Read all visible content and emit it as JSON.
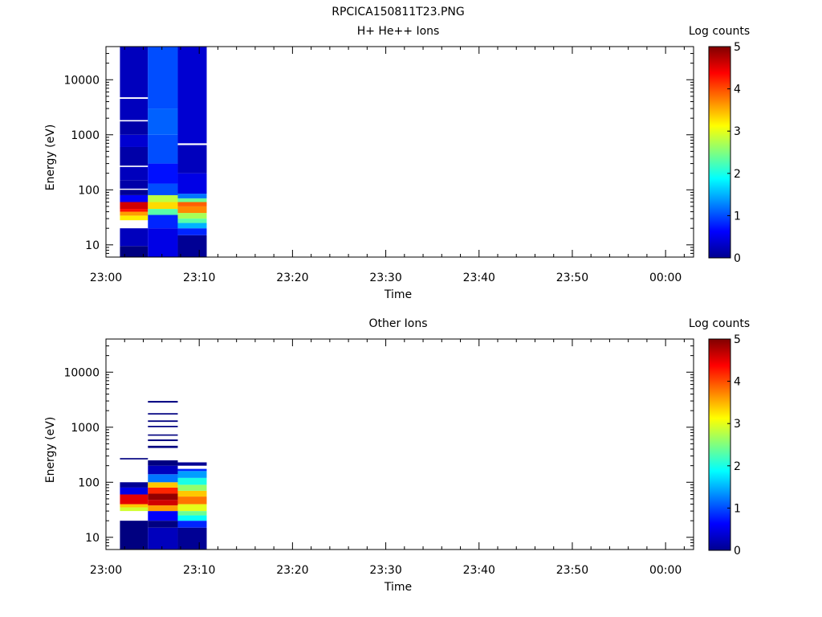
{
  "figure": {
    "title": "RPCICA150811T23.PNG"
  },
  "colors": {
    "background": "#ffffff",
    "axes": "#000000",
    "colormap": "jet"
  },
  "chart_data": [
    {
      "type": "heatmap",
      "title": "H+ He++ Ions",
      "xlabel": "Time",
      "ylabel": "Energy (eV)",
      "yscale": "log",
      "xlim": [
        "23:00",
        "00:03"
      ],
      "ylim": [
        6,
        40000
      ],
      "x_ticks": [
        "23:00",
        "23:10",
        "23:20",
        "23:30",
        "23:40",
        "23:50",
        "00:00"
      ],
      "y_ticks": [
        "10",
        "100",
        "1000",
        "10000"
      ],
      "colorbar": {
        "label": "Log counts",
        "range": [
          0,
          5
        ],
        "ticks": [
          "0",
          "1",
          "2",
          "3",
          "4",
          "5"
        ]
      },
      "time_bins": [
        {
          "start": "23:01.5",
          "end": "23:04.5"
        },
        {
          "start": "23:04.5",
          "end": "23:07.7"
        },
        {
          "start": "23:07.7",
          "end": "23:10.8"
        }
      ],
      "cells": [
        [
          {
            "e": [
              6,
              9.5
            ],
            "v": 0.0
          },
          {
            "e": [
              9.5,
              20
            ],
            "v": 0.3
          },
          {
            "e": [
              20,
              28
            ],
            "v": null
          },
          {
            "e": [
              28,
              34
            ],
            "v": 3.2
          },
          {
            "e": [
              34,
              40
            ],
            "v": 3.6
          },
          {
            "e": [
              40,
              45
            ],
            "v": 4.3
          },
          {
            "e": [
              45,
              60
            ],
            "v": 4.6
          },
          {
            "e": [
              60,
              80
            ],
            "v": 0.6
          },
          {
            "e": [
              80,
              100
            ],
            "v": 0.1
          },
          {
            "e": [
              100,
              105
            ],
            "v": null
          },
          {
            "e": [
              105,
              150
            ],
            "v": 0.2
          },
          {
            "e": [
              150,
              260
            ],
            "v": 0.3
          },
          {
            "e": [
              260,
              275
            ],
            "v": null
          },
          {
            "e": [
              275,
              600
            ],
            "v": 0.2
          },
          {
            "e": [
              600,
              1000
            ],
            "v": 0.4
          },
          {
            "e": [
              1000,
              1750
            ],
            "v": 0.2
          },
          {
            "e": [
              1750,
              1850
            ],
            "v": null
          },
          {
            "e": [
              1850,
              4500
            ],
            "v": 0.3
          },
          {
            "e": [
              4500,
              4800
            ],
            "v": null
          },
          {
            "e": [
              4800,
              40000
            ],
            "v": 0.3
          }
        ],
        [
          {
            "e": [
              6,
              20
            ],
            "v": 0.5
          },
          {
            "e": [
              20,
              35
            ],
            "v": 0.8
          },
          {
            "e": [
              35,
              45
            ],
            "v": 2.3
          },
          {
            "e": [
              45,
              60
            ],
            "v": 3.3
          },
          {
            "e": [
              60,
              80
            ],
            "v": 2.8
          },
          {
            "e": [
              80,
              130
            ],
            "v": 1.0
          },
          {
            "e": [
              130,
              300
            ],
            "v": 0.7
          },
          {
            "e": [
              300,
              1000
            ],
            "v": 1.0
          },
          {
            "e": [
              1000,
              3000
            ],
            "v": 1.1
          },
          {
            "e": [
              3000,
              40000
            ],
            "v": 1.0
          }
        ],
        [
          {
            "e": [
              6,
              15
            ],
            "v": 0.1
          },
          {
            "e": [
              15,
              20
            ],
            "v": 0.8
          },
          {
            "e": [
              20,
              25
            ],
            "v": 1.5
          },
          {
            "e": [
              25,
              30
            ],
            "v": 2.3
          },
          {
            "e": [
              30,
              38
            ],
            "v": 2.7
          },
          {
            "e": [
              38,
              50
            ],
            "v": 3.7
          },
          {
            "e": [
              50,
              60
            ],
            "v": 3.9
          },
          {
            "e": [
              60,
              70
            ],
            "v": 2.4
          },
          {
            "e": [
              70,
              85
            ],
            "v": 1.2
          },
          {
            "e": [
              85,
              200
            ],
            "v": 0.5
          },
          {
            "e": [
              200,
              650
            ],
            "v": 0.3
          },
          {
            "e": [
              650,
              700
            ],
            "v": null
          },
          {
            "e": [
              700,
              40000
            ],
            "v": 0.4
          }
        ]
      ]
    },
    {
      "type": "heatmap",
      "title": "Other Ions",
      "xlabel": "Time",
      "ylabel": "Energy (eV)",
      "yscale": "log",
      "xlim": [
        "23:00",
        "00:03"
      ],
      "ylim": [
        6,
        40000
      ],
      "x_ticks": [
        "23:00",
        "23:10",
        "23:20",
        "23:30",
        "23:40",
        "23:50",
        "00:00"
      ],
      "y_ticks": [
        "10",
        "100",
        "1000",
        "10000"
      ],
      "colorbar": {
        "label": "Log counts",
        "range": [
          0,
          5
        ],
        "ticks": [
          "0",
          "1",
          "2",
          "3",
          "4",
          "5"
        ]
      },
      "time_bins": [
        {
          "start": "23:01.5",
          "end": "23:04.5"
        },
        {
          "start": "23:04.5",
          "end": "23:07.7"
        },
        {
          "start": "23:07.7",
          "end": "23:10.8"
        }
      ],
      "cells": [
        [
          {
            "e": [
              6,
              20
            ],
            "v": 0.0
          },
          {
            "e": [
              20,
              30
            ],
            "v": null
          },
          {
            "e": [
              30,
              35
            ],
            "v": 2.9
          },
          {
            "e": [
              35,
              40
            ],
            "v": 3.4
          },
          {
            "e": [
              40,
              60
            ],
            "v": 4.5
          },
          {
            "e": [
              60,
              80
            ],
            "v": 0.5
          },
          {
            "e": [
              80,
              100
            ],
            "v": 0.1
          },
          {
            "e": [
              260,
              275
            ],
            "v": 0.0
          }
        ],
        [
          {
            "e": [
              6,
              15
            ],
            "v": 0.3
          },
          {
            "e": [
              15,
              20
            ],
            "v": 0.0
          },
          {
            "e": [
              20,
              30
            ],
            "v": 0.6
          },
          {
            "e": [
              30,
              38
            ],
            "v": 3.6
          },
          {
            "e": [
              38,
              48
            ],
            "v": 4.6
          },
          {
            "e": [
              48,
              62
            ],
            "v": 4.9
          },
          {
            "e": [
              62,
              80
            ],
            "v": 4.2
          },
          {
            "e": [
              80,
              100
            ],
            "v": 3.4
          },
          {
            "e": [
              100,
              140
            ],
            "v": 1.2
          },
          {
            "e": [
              140,
              200
            ],
            "v": 0.3
          },
          {
            "e": [
              200,
              250
            ],
            "v": 0.0
          },
          {
            "e": [
              420,
              460
            ],
            "v": 0.0
          },
          {
            "e": [
              560,
              600
            ],
            "v": 0.0
          },
          {
            "e": [
              700,
              740
            ],
            "v": 0.0
          },
          {
            "e": [
              1000,
              1060
            ],
            "v": 0.0
          },
          {
            "e": [
              1250,
              1330
            ],
            "v": 0.0
          },
          {
            "e": [
              1700,
              1800
            ],
            "v": 0.0
          },
          {
            "e": [
              2800,
              3000
            ],
            "v": 0.0
          }
        ],
        [
          {
            "e": [
              6,
              15
            ],
            "v": 0.1
          },
          {
            "e": [
              15,
              20
            ],
            "v": 0.8
          },
          {
            "e": [
              20,
              25
            ],
            "v": 1.9
          },
          {
            "e": [
              25,
              30
            ],
            "v": 2.4
          },
          {
            "e": [
              30,
              40
            ],
            "v": 3.0
          },
          {
            "e": [
              40,
              55
            ],
            "v": 3.8
          },
          {
            "e": [
              55,
              70
            ],
            "v": 3.4
          },
          {
            "e": [
              70,
              90
            ],
            "v": 2.6
          },
          {
            "e": [
              90,
              120
            ],
            "v": 2.0
          },
          {
            "e": [
              120,
              160
            ],
            "v": 1.4
          },
          {
            "e": [
              160,
              175
            ],
            "v": 0.8
          },
          {
            "e": [
              200,
              230
            ],
            "v": 0.1
          }
        ]
      ]
    }
  ]
}
